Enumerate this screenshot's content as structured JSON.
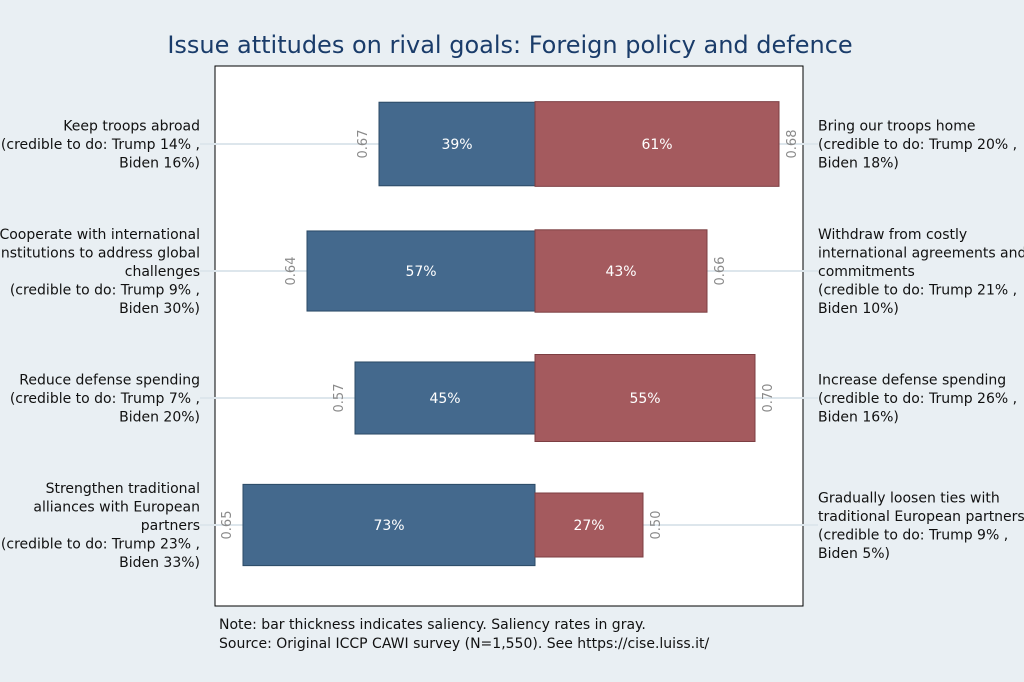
{
  "chart_data": {
    "type": "bar",
    "orientation": "horizontal-diverging",
    "title": "Issue attitudes on rival goals: Foreign policy and defence",
    "xlim": [
      -80,
      80
    ],
    "colors": {
      "left": "#44698d",
      "right": "#a45a5e"
    },
    "rows": [
      {
        "left_label": [
          "Keep troops abroad",
          "(credible to do: Trump 14% ,",
          "Biden 16%)"
        ],
        "right_label": [
          "Bring our troops home",
          "(credible to do: Trump 20% ,",
          "Biden 18%)"
        ],
        "left_value": 39,
        "right_value": 61,
        "left_text": "39%",
        "right_text": "61%",
        "left_saliency": 0.67,
        "right_saliency": 0.68,
        "left_saliency_text": "0.67",
        "right_saliency_text": "0.68"
      },
      {
        "left_label": [
          "Cooperate with international",
          "institutions to address global",
          "challenges",
          "(credible to do: Trump 9% ,",
          "Biden 30%)"
        ],
        "right_label": [
          "Withdraw from costly",
          "international agreements and",
          "commitments",
          "(credible to do: Trump 21% ,",
          "Biden 10%)"
        ],
        "left_value": 57,
        "right_value": 43,
        "left_text": "57%",
        "right_text": "43%",
        "left_saliency": 0.64,
        "right_saliency": 0.66,
        "left_saliency_text": "0.64",
        "right_saliency_text": "0.66"
      },
      {
        "left_label": [
          "Reduce defense spending",
          "(credible to do: Trump 7% ,",
          "Biden 20%)"
        ],
        "right_label": [
          "Increase defense spending",
          "(credible to do: Trump 26% ,",
          "Biden 16%)"
        ],
        "left_value": 45,
        "right_value": 55,
        "left_text": "45%",
        "right_text": "55%",
        "left_saliency": 0.57,
        "right_saliency": 0.7,
        "left_saliency_text": "0.57",
        "right_saliency_text": "0.70"
      },
      {
        "left_label": [
          "Strengthen traditional",
          "alliances with European",
          "partners",
          "(credible to do: Trump 23% ,",
          "Biden 33%)"
        ],
        "right_label": [
          "Gradually loosen ties with",
          "traditional European partners",
          "(credible to do: Trump 9% ,",
          "Biden 5%)"
        ],
        "left_value": 73,
        "right_value": 27,
        "left_text": "73%",
        "right_text": "27%",
        "left_saliency": 0.65,
        "right_saliency": 0.5,
        "left_saliency_text": "0.65",
        "right_saliency_text": "0.50"
      }
    ],
    "notes": [
      "Note: bar thickness indicates saliency. Saliency rates in gray.",
      "Source: Original ICCP CAWI survey (N=1,550). See https://cise.luiss.it/"
    ]
  }
}
